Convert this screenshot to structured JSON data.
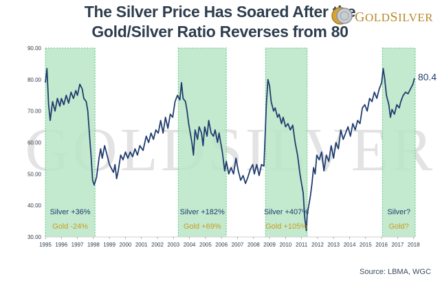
{
  "header": {
    "title_line1": "The Silver Price Has Soared After the",
    "title_line2": "Gold/Silver Ratio Reverses from 80"
  },
  "logo": {
    "text_first": "G",
    "text_rest": "OLD",
    "text_second": "S",
    "text_rest2": "ILVER",
    "watermark": "GOLDSILVER"
  },
  "source": "Source: LBMA, WGC",
  "colors": {
    "line": "#1f3c6e",
    "band_fill": "#b9e6c5",
    "band_border": "#5cc27d",
    "silver_text": "#1f3c6e",
    "gold_text": "#c99a1e"
  },
  "chart_data": {
    "type": "line",
    "ylim": [
      30,
      90
    ],
    "xlim": [
      1995,
      2018.1
    ],
    "yticks": [
      "30.00",
      "40.00",
      "50.00",
      "60.00",
      "70.00",
      "80.00",
      "90.00"
    ],
    "xticks": [
      "1995",
      "1996",
      "1997",
      "1998",
      "1999",
      "2000",
      "2001",
      "2002",
      "2003",
      "2004",
      "2005",
      "2006",
      "2007",
      "2008",
      "2009",
      "2010",
      "2011",
      "2012",
      "2013",
      "2014",
      "2015",
      "2016",
      "2017",
      "2018"
    ],
    "end_label": "80.4",
    "grid": false,
    "series": [
      {
        "values": [
          [
            1995.0,
            79.0
          ],
          [
            1995.1,
            83.5
          ],
          [
            1995.2,
            72.0
          ],
          [
            1995.3,
            67.0
          ],
          [
            1995.45,
            73.0
          ],
          [
            1995.6,
            70.0
          ],
          [
            1995.75,
            74.0
          ],
          [
            1995.9,
            71.5
          ],
          [
            1996.0,
            74.0
          ],
          [
            1996.15,
            72.0
          ],
          [
            1996.3,
            75.0
          ],
          [
            1996.45,
            72.5
          ],
          [
            1996.6,
            76.0
          ],
          [
            1996.75,
            74.0
          ],
          [
            1996.9,
            76.5
          ],
          [
            1997.0,
            75.0
          ],
          [
            1997.15,
            78.5
          ],
          [
            1997.3,
            77.0
          ],
          [
            1997.4,
            74.0
          ],
          [
            1997.55,
            73.0
          ],
          [
            1997.65,
            70.0
          ],
          [
            1997.75,
            63.0
          ],
          [
            1997.85,
            56.0
          ],
          [
            1997.95,
            48.0
          ],
          [
            1998.05,
            46.5
          ],
          [
            1998.2,
            49.0
          ],
          [
            1998.35,
            55.0
          ],
          [
            1998.45,
            58.0
          ],
          [
            1998.55,
            55.0
          ],
          [
            1998.7,
            59.0
          ],
          [
            1998.85,
            56.0
          ],
          [
            1999.0,
            53.0
          ],
          [
            1999.1,
            52.0
          ],
          [
            1999.25,
            50.5
          ],
          [
            1999.35,
            53.0
          ],
          [
            1999.45,
            48.5
          ],
          [
            1999.55,
            51.0
          ],
          [
            1999.7,
            56.0
          ],
          [
            1999.85,
            54.5
          ],
          [
            2000.0,
            57.0
          ],
          [
            2000.15,
            55.0
          ],
          [
            2000.3,
            57.0
          ],
          [
            2000.45,
            55.5
          ],
          [
            2000.6,
            58.0
          ],
          [
            2000.75,
            56.0
          ],
          [
            2000.9,
            59.0
          ],
          [
            2001.1,
            57.5
          ],
          [
            2001.3,
            62.0
          ],
          [
            2001.45,
            60.0
          ],
          [
            2001.6,
            63.0
          ],
          [
            2001.75,
            61.0
          ],
          [
            2001.9,
            64.0
          ],
          [
            2002.05,
            63.0
          ],
          [
            2002.2,
            67.0
          ],
          [
            2002.35,
            63.0
          ],
          [
            2002.5,
            68.0
          ],
          [
            2002.65,
            64.5
          ],
          [
            2002.8,
            69.0
          ],
          [
            2002.95,
            68.0
          ],
          [
            2003.1,
            73.0
          ],
          [
            2003.25,
            75.0
          ],
          [
            2003.4,
            73.5
          ],
          [
            2003.5,
            79.0
          ],
          [
            2003.6,
            74.0
          ],
          [
            2003.75,
            73.0
          ],
          [
            2003.85,
            70.0
          ],
          [
            2003.95,
            66.0
          ],
          [
            2004.05,
            63.0
          ],
          [
            2004.15,
            60.0
          ],
          [
            2004.25,
            56.0
          ],
          [
            2004.35,
            64.0
          ],
          [
            2004.5,
            61.0
          ],
          [
            2004.6,
            65.0
          ],
          [
            2004.75,
            63.0
          ],
          [
            2004.85,
            59.0
          ],
          [
            2004.95,
            65.0
          ],
          [
            2005.1,
            62.0
          ],
          [
            2005.2,
            67.0
          ],
          [
            2005.35,
            63.0
          ],
          [
            2005.5,
            62.0
          ],
          [
            2005.6,
            64.0
          ],
          [
            2005.75,
            60.0
          ],
          [
            2005.85,
            63.0
          ],
          [
            2005.95,
            60.0
          ],
          [
            2006.05,
            57.0
          ],
          [
            2006.2,
            51.0
          ],
          [
            2006.3,
            54.0
          ],
          [
            2006.45,
            50.0
          ],
          [
            2006.6,
            52.0
          ],
          [
            2006.75,
            50.0
          ],
          [
            2006.9,
            55.0
          ],
          [
            2007.05,
            51.0
          ],
          [
            2007.2,
            48.0
          ],
          [
            2007.35,
            49.5
          ],
          [
            2007.5,
            47.0
          ],
          [
            2007.65,
            49.0
          ],
          [
            2007.8,
            51.5
          ],
          [
            2007.95,
            53.0
          ],
          [
            2008.05,
            50.0
          ],
          [
            2008.2,
            53.0
          ],
          [
            2008.35,
            49.5
          ],
          [
            2008.5,
            53.0
          ],
          [
            2008.65,
            52.5
          ],
          [
            2008.8,
            72.0
          ],
          [
            2008.9,
            80.0
          ],
          [
            2009.0,
            78.0
          ],
          [
            2009.1,
            73.0
          ],
          [
            2009.25,
            70.0
          ],
          [
            2009.35,
            71.0
          ],
          [
            2009.5,
            68.0
          ],
          [
            2009.6,
            69.0
          ],
          [
            2009.75,
            66.0
          ],
          [
            2009.85,
            68.0
          ],
          [
            2010.0,
            65.0
          ],
          [
            2010.15,
            66.0
          ],
          [
            2010.3,
            64.0
          ],
          [
            2010.45,
            65.5
          ],
          [
            2010.6,
            60.0
          ],
          [
            2010.75,
            56.0
          ],
          [
            2010.9,
            50.0
          ],
          [
            2011.0,
            47.0
          ],
          [
            2011.1,
            44.0
          ],
          [
            2011.2,
            36.0
          ],
          [
            2011.3,
            32.0
          ],
          [
            2011.35,
            37.0
          ],
          [
            2011.45,
            40.0
          ],
          [
            2011.55,
            43.0
          ],
          [
            2011.65,
            47.0
          ],
          [
            2011.75,
            52.0
          ],
          [
            2011.85,
            50.0
          ],
          [
            2011.95,
            56.0
          ],
          [
            2012.1,
            54.5
          ],
          [
            2012.25,
            57.0
          ],
          [
            2012.4,
            51.0
          ],
          [
            2012.55,
            56.0
          ],
          [
            2012.7,
            54.0
          ],
          [
            2012.85,
            59.0
          ],
          [
            2013.0,
            55.0
          ],
          [
            2013.15,
            60.0
          ],
          [
            2013.3,
            58.0
          ],
          [
            2013.45,
            64.0
          ],
          [
            2013.6,
            61.0
          ],
          [
            2013.75,
            63.0
          ],
          [
            2013.9,
            65.0
          ],
          [
            2014.05,
            62.0
          ],
          [
            2014.2,
            66.0
          ],
          [
            2014.35,
            64.0
          ],
          [
            2014.5,
            67.0
          ],
          [
            2014.65,
            66.0
          ],
          [
            2014.8,
            71.0
          ],
          [
            2014.95,
            72.0
          ],
          [
            2015.1,
            70.0
          ],
          [
            2015.25,
            74.0
          ],
          [
            2015.4,
            73.0
          ],
          [
            2015.55,
            76.0
          ],
          [
            2015.7,
            74.0
          ],
          [
            2015.85,
            77.0
          ],
          [
            2016.0,
            79.0
          ],
          [
            2016.1,
            83.5
          ],
          [
            2016.2,
            80.0
          ],
          [
            2016.3,
            75.0
          ],
          [
            2016.45,
            72.0
          ],
          [
            2016.55,
            68.0
          ],
          [
            2016.65,
            70.5
          ],
          [
            2016.8,
            69.0
          ],
          [
            2016.95,
            72.0
          ],
          [
            2017.1,
            71.0
          ],
          [
            2017.2,
            73.0
          ],
          [
            2017.35,
            75.0
          ],
          [
            2017.5,
            76.0
          ],
          [
            2017.65,
            75.5
          ],
          [
            2017.8,
            77.0
          ],
          [
            2017.95,
            78.5
          ],
          [
            2018.05,
            80.4
          ]
        ]
      }
    ],
    "bands": [
      {
        "from": 1995.0,
        "to": 1998.1,
        "silver": "Silver +36%",
        "gold": "Gold -24%"
      },
      {
        "from": 2003.3,
        "to": 2006.3,
        "silver": "Silver +182%",
        "gold": "Gold +69%"
      },
      {
        "from": 2008.75,
        "to": 2011.35,
        "silver": "Silver +407%",
        "gold": "Gold +105%"
      },
      {
        "from": 2016.05,
        "to": 2018.1,
        "silver": "Silver?",
        "gold": "Gold?"
      }
    ]
  }
}
